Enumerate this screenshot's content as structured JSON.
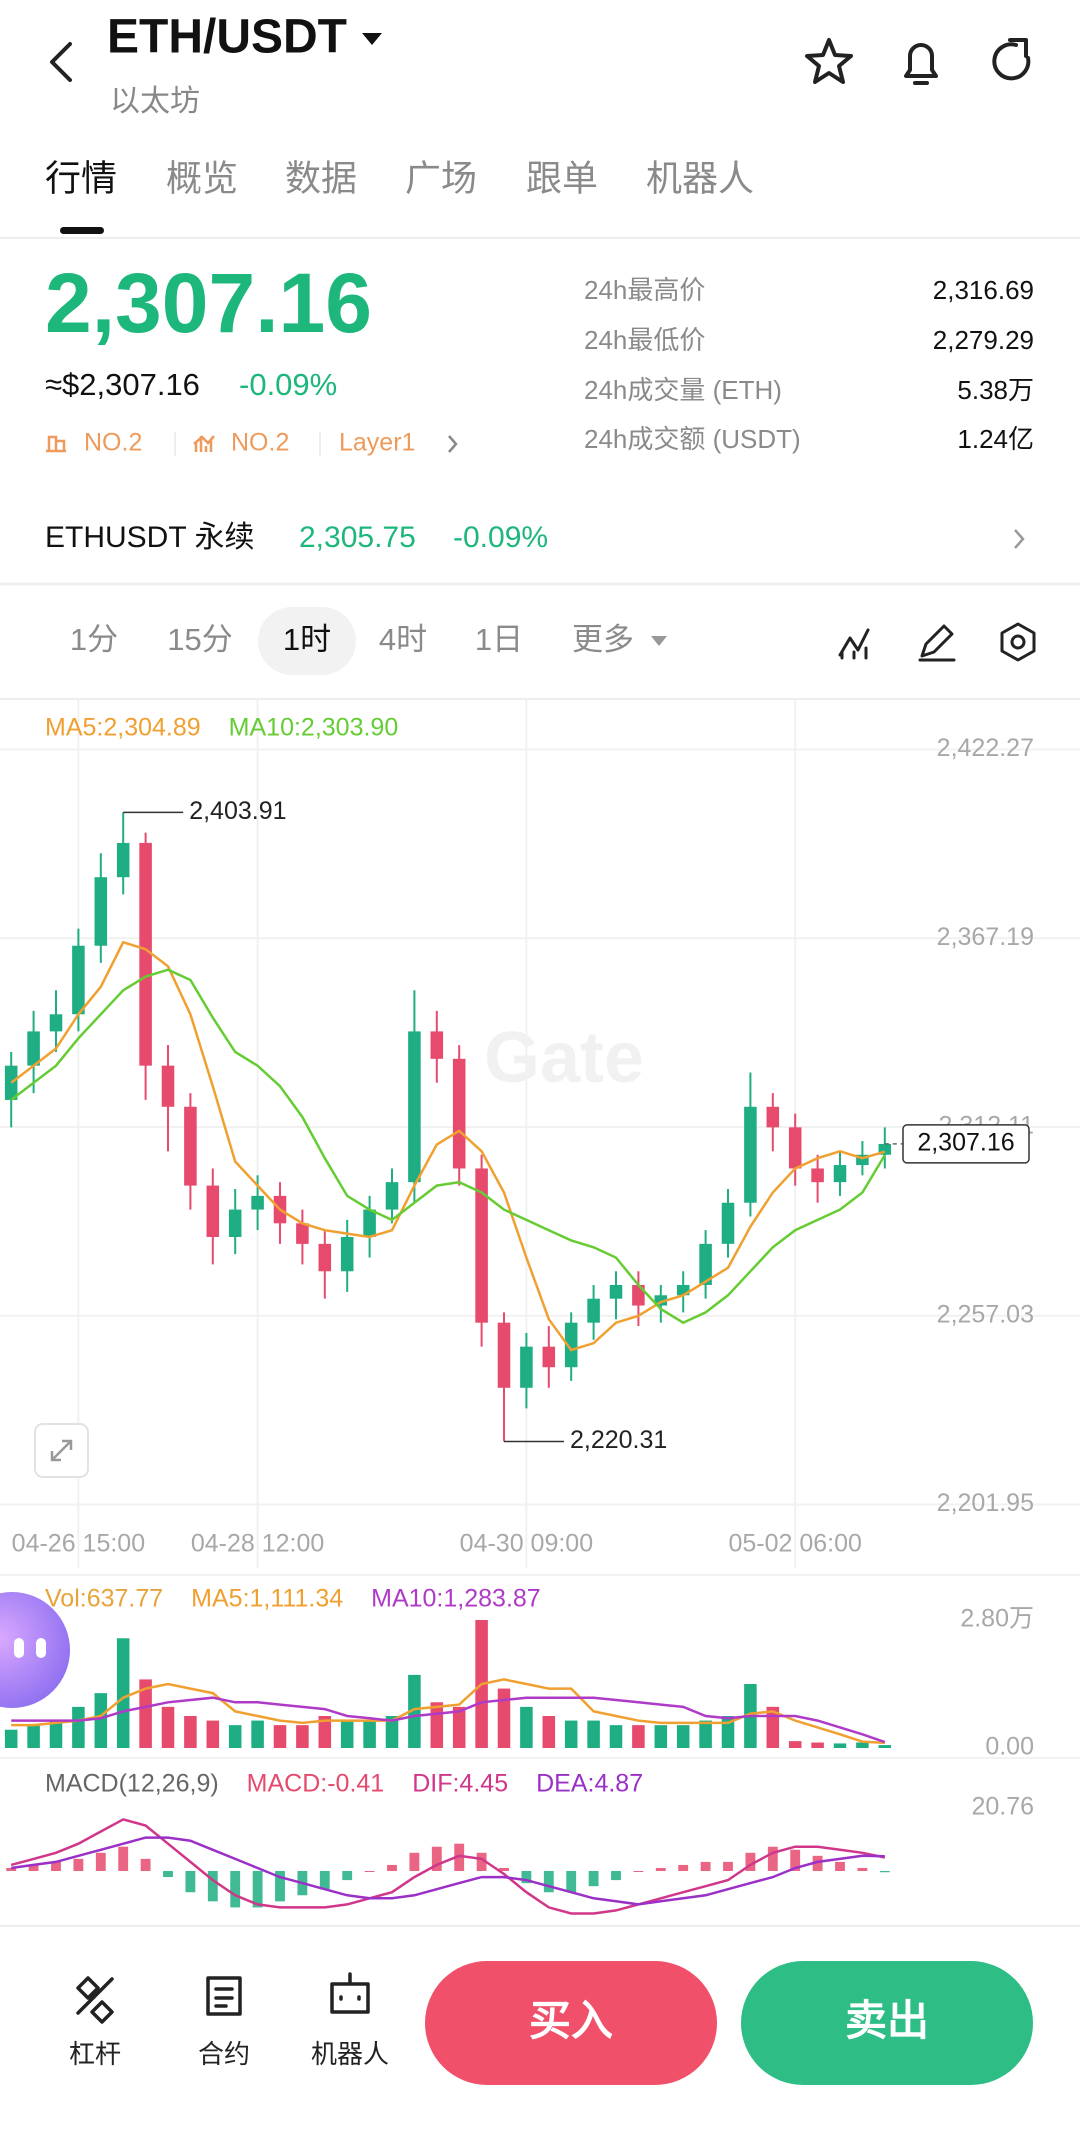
{
  "header": {
    "title": "ETH/USDT",
    "subtitle": "以太坊"
  },
  "tabs": [
    "行情",
    "概览",
    "数据",
    "广场",
    "跟单",
    "机器人"
  ],
  "ticker": {
    "price": "2,307.16",
    "usd_price": "≈$2,307.16",
    "change": "-0.09%",
    "badges": [
      "NO.2",
      "NO.2",
      "Layer1"
    ],
    "stats": [
      {
        "label": "24h最高价",
        "value": "2,316.69"
      },
      {
        "label": "24h最低价",
        "value": "2,279.29"
      },
      {
        "label": "24h成交量 (ETH)",
        "value": "5.38万"
      },
      {
        "label": "24h成交额 (USDT)",
        "value": "1.24亿"
      }
    ]
  },
  "perpetual": {
    "name": "ETHUSDT 永续",
    "price": "2,305.75",
    "change": "-0.09%"
  },
  "intervals": [
    "1分",
    "15分",
    "1时",
    "4时",
    "1日",
    "更多"
  ],
  "chart_data": [
    {
      "type": "candlestick",
      "watermark": "Gate",
      "categories": [
        null,
        null,
        null,
        "04-26 15:00",
        null,
        null,
        null,
        null,
        null,
        null,
        null,
        "04-28 12:00",
        null,
        null,
        null,
        null,
        null,
        null,
        null,
        null,
        null,
        null,
        null,
        "04-30 09:00",
        null,
        null,
        null,
        null,
        null,
        null,
        null,
        null,
        null,
        null,
        null,
        "05-02 06:00",
        null,
        null,
        null,
        null
      ],
      "open": [
        2320,
        2330,
        2340,
        2345,
        2365,
        2385,
        2395,
        2330,
        2318,
        2295,
        2280,
        2288,
        2292,
        2284,
        2278,
        2270,
        2280,
        2288,
        2296,
        2340,
        2332,
        2300,
        2255,
        2236,
        2248,
        2242,
        2255,
        2262,
        2266,
        2260,
        2263,
        2266,
        2278,
        2290,
        2318,
        2312,
        2300,
        2296,
        2301,
        2304
      ],
      "high": [
        2334,
        2346,
        2352,
        2370,
        2392,
        2403.91,
        2398,
        2336,
        2322,
        2300,
        2294,
        2298,
        2296,
        2288,
        2282,
        2285,
        2292,
        2300,
        2352,
        2346,
        2336,
        2304,
        2258,
        2252,
        2254,
        2258,
        2266,
        2270,
        2270,
        2266,
        2270,
        2282,
        2294,
        2328,
        2322,
        2316,
        2304,
        2305,
        2308,
        2312
      ],
      "low": [
        2312,
        2322,
        2334,
        2340,
        2360,
        2380,
        2320,
        2305,
        2288,
        2272,
        2275,
        2282,
        2278,
        2272,
        2262,
        2264,
        2274,
        2284,
        2290,
        2325,
        2295,
        2248,
        2220.31,
        2230,
        2236,
        2238,
        2250,
        2256,
        2254,
        2255,
        2258,
        2262,
        2274,
        2286,
        2305,
        2295,
        2290,
        2292,
        2298,
        2300
      ],
      "close": [
        2330,
        2340,
        2345,
        2365,
        2385,
        2395,
        2330,
        2318,
        2295,
        2280,
        2288,
        2292,
        2284,
        2278,
        2270,
        2280,
        2288,
        2296,
        2340,
        2332,
        2300,
        2255,
        2236,
        2248,
        2242,
        2255,
        2262,
        2266,
        2260,
        2263,
        2266,
        2278,
        2290,
        2318,
        2312,
        2300,
        2296,
        2301,
        2304,
        2307.16
      ],
      "up_color": "#1fae83",
      "down_color": "#e64a6d",
      "series": [
        {
          "name": "MA5:2,304.89",
          "color": "#f0a030",
          "values": [
            2325,
            2330,
            2335,
            2345,
            2353,
            2366,
            2364,
            2359,
            2345,
            2324,
            2302,
            2295,
            2288,
            2284,
            2282,
            2281,
            2280,
            2282,
            2295,
            2307,
            2311,
            2305,
            2293,
            2274,
            2256,
            2247,
            2249,
            2255,
            2257,
            2261,
            2263,
            2267,
            2271,
            2283,
            2293,
            2300,
            2303,
            2305,
            2303,
            2304.89
          ]
        },
        {
          "name": "MA10:2,303.90",
          "color": "#66cc33",
          "values": [
            2320,
            2325,
            2330,
            2338,
            2345,
            2352,
            2356,
            2358,
            2355,
            2344,
            2334,
            2330,
            2324,
            2315,
            2303,
            2292,
            2288,
            2285,
            2290,
            2295,
            2296,
            2293,
            2288,
            2285,
            2282,
            2279,
            2277,
            2274,
            2266,
            2259,
            2255,
            2258,
            2263,
            2270,
            2277,
            2282,
            2285,
            2288,
            2293,
            2303.9
          ]
        }
      ],
      "annotations": [
        {
          "value": 2403.91,
          "text": "2,403.91"
        },
        {
          "value": 2220.31,
          "text": "2,220.31"
        }
      ],
      "last_price": {
        "value": 2307.16,
        "label": "2,307.16"
      },
      "ylim": [
        2198,
        2437
      ],
      "yticks": [
        {
          "value": 2422.27,
          "label": "2,422.27"
        },
        {
          "value": 2367.19,
          "label": "2,367.19"
        },
        {
          "value": 2312.11,
          "label": "2,312.11"
        },
        {
          "value": 2257.03,
          "label": "2,257.03"
        },
        {
          "value": 2201.95,
          "label": "2,201.95"
        }
      ],
      "grid": true
    },
    {
      "type": "volume",
      "series": [
        {
          "name": "Vol:637.77",
          "type": "bar",
          "color": "#e8a33a",
          "values": [
            0.4,
            0.5,
            0.6,
            0.9,
            1.2,
            2.4,
            1.5,
            0.9,
            0.7,
            0.6,
            0.5,
            0.6,
            0.5,
            0.5,
            0.7,
            0.6,
            0.6,
            0.7,
            1.6,
            1.0,
            0.9,
            2.8,
            1.3,
            0.9,
            0.7,
            0.6,
            0.6,
            0.5,
            0.5,
            0.5,
            0.5,
            0.6,
            0.7,
            1.4,
            0.9,
            0.15,
            0.12,
            0.1,
            0.12,
            0.0638
          ]
        },
        {
          "name": "MA5:1,111.34",
          "color": "#f0a030",
          "values": [
            0.5,
            0.5,
            0.55,
            0.6,
            0.7,
            1.1,
            1.3,
            1.4,
            1.3,
            1.2,
            0.8,
            0.7,
            0.6,
            0.55,
            0.6,
            0.6,
            0.6,
            0.6,
            0.85,
            0.9,
            0.95,
            1.4,
            1.5,
            1.4,
            1.3,
            1.3,
            0.8,
            0.7,
            0.6,
            0.55,
            0.55,
            0.55,
            0.55,
            0.75,
            0.8,
            0.6,
            0.45,
            0.3,
            0.14,
            0.1111
          ]
        },
        {
          "name": "MA10:1,283.87",
          "color": "#b03ac8",
          "values": [
            0.6,
            0.6,
            0.6,
            0.6,
            0.65,
            0.8,
            0.9,
            1.0,
            1.05,
            1.1,
            1.0,
            1.0,
            0.95,
            0.9,
            0.85,
            0.7,
            0.65,
            0.6,
            0.7,
            0.75,
            0.8,
            1.0,
            1.05,
            1.1,
            1.1,
            1.1,
            1.1,
            1.05,
            1.0,
            0.95,
            0.9,
            0.7,
            0.65,
            0.7,
            0.7,
            0.7,
            0.6,
            0.45,
            0.3,
            0.1284
          ]
        }
      ],
      "ylim": [
        0,
        2.8
      ],
      "yticks": [
        {
          "value": 2.8,
          "label": "2.80万"
        },
        {
          "value": 0,
          "label": "0.00"
        }
      ]
    },
    {
      "type": "macd",
      "title": "MACD(12,26,9)",
      "series": [
        {
          "name": "MACD:-0.41",
          "type": "bar",
          "color": "#e64a6d",
          "negative_color": "#1fae83",
          "values": [
            1,
            2,
            3,
            4,
            6,
            8,
            4,
            -2,
            -7,
            -10,
            -12,
            -12,
            -10,
            -8,
            -6,
            -3,
            0,
            2,
            6,
            8,
            9,
            6,
            1,
            -4,
            -7,
            -7,
            -5,
            -3,
            0,
            1,
            2,
            3,
            3,
            6,
            8,
            7,
            5,
            3,
            1,
            -0.41
          ]
        },
        {
          "name": "DIF:4.45",
          "color": "#d0368a",
          "values": [
            2,
            4,
            6,
            9,
            13,
            17,
            15,
            9,
            3,
            -3,
            -8,
            -11,
            -12,
            -12,
            -12,
            -11,
            -9,
            -7,
            -2,
            2,
            5,
            4,
            -1,
            -7,
            -12,
            -14,
            -14,
            -13,
            -11,
            -9,
            -7,
            -5,
            -3,
            2,
            6,
            8,
            8,
            7,
            6,
            4.45
          ]
        },
        {
          "name": "DEA:4.87",
          "color": "#9b30c8",
          "values": [
            1,
            2,
            3,
            5,
            7,
            9,
            11,
            11,
            10,
            7,
            4,
            1,
            -2,
            -4,
            -6,
            -8,
            -9,
            -9,
            -8,
            -6,
            -4,
            -2,
            -2,
            -3,
            -5,
            -7,
            -9,
            -10,
            -11,
            -10,
            -9,
            -8,
            -6,
            -4,
            -2,
            1,
            3,
            4,
            5,
            4.87
          ]
        }
      ],
      "ylim": [
        -14.5,
        34.6
      ],
      "yticks": [
        20.76
      ]
    }
  ],
  "footer": {
    "tools": [
      "杠杆",
      "合约",
      "机器人"
    ],
    "buy": "买入",
    "sell": "卖出"
  }
}
